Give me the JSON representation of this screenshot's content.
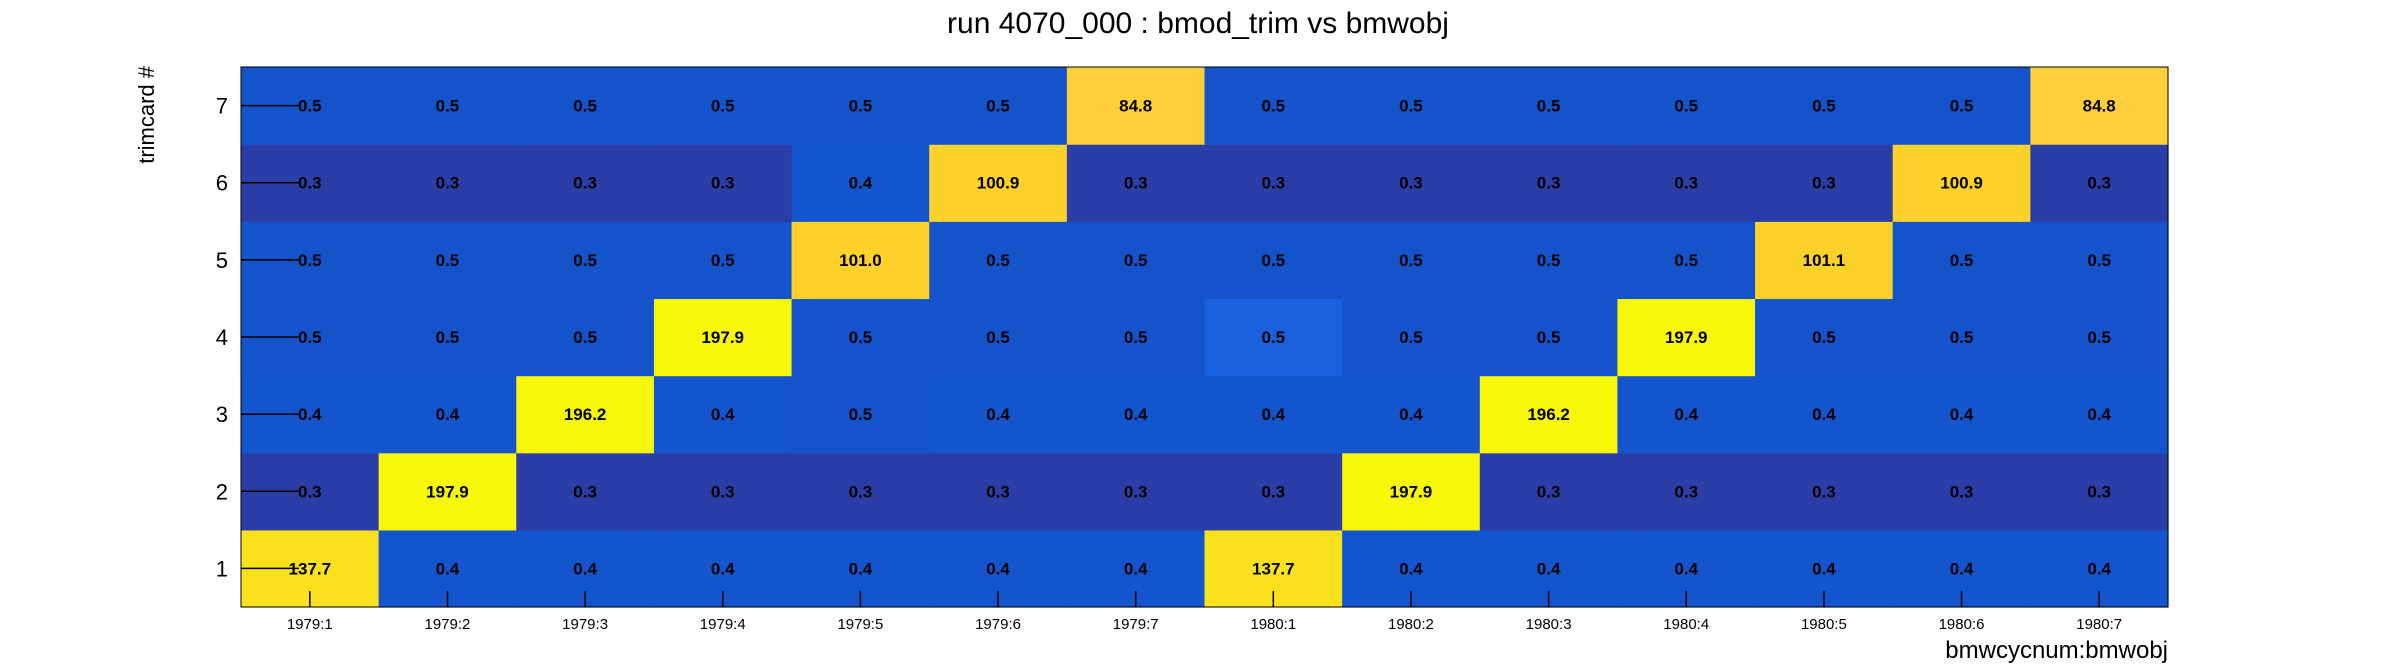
{
  "chart_data": {
    "type": "heatmap",
    "title": "run 4070_000 : bmod_trim vs bmwobj",
    "xlabel": "bmwcycnum:bmwobj",
    "ylabel": "trimcard #",
    "x_categories": [
      "1979:1",
      "1979:2",
      "1979:3",
      "1979:4",
      "1979:5",
      "1979:6",
      "1979:7",
      "1980:1",
      "1980:2",
      "1980:3",
      "1980:4",
      "1980:5",
      "1980:6",
      "1980:7"
    ],
    "y_categories": [
      "1",
      "2",
      "3",
      "4",
      "5",
      "6",
      "7"
    ],
    "values": [
      [
        137.7,
        0.4,
        0.4,
        0.4,
        0.4,
        0.4,
        0.4,
        137.7,
        0.4,
        0.4,
        0.4,
        0.4,
        0.4,
        0.4
      ],
      [
        0.3,
        197.9,
        0.3,
        0.3,
        0.3,
        0.3,
        0.3,
        0.3,
        197.9,
        0.3,
        0.3,
        0.3,
        0.3,
        0.3
      ],
      [
        0.4,
        0.4,
        196.2,
        0.4,
        0.5,
        0.4,
        0.4,
        0.4,
        0.4,
        196.2,
        0.4,
        0.4,
        0.4,
        0.4
      ],
      [
        0.5,
        0.5,
        0.5,
        197.9,
        0.5,
        0.5,
        0.5,
        0.5,
        0.5,
        0.5,
        197.9,
        0.5,
        0.5,
        0.5
      ],
      [
        0.5,
        0.5,
        0.5,
        0.5,
        101.0,
        0.5,
        0.5,
        0.5,
        0.5,
        0.5,
        0.5,
        101.1,
        0.5,
        0.5
      ],
      [
        0.3,
        0.3,
        0.3,
        0.3,
        0.4,
        100.9,
        0.3,
        0.3,
        0.3,
        0.3,
        0.3,
        0.3,
        100.9,
        0.3
      ],
      [
        0.5,
        0.5,
        0.5,
        0.5,
        0.5,
        0.5,
        84.8,
        0.5,
        0.5,
        0.5,
        0.5,
        0.5,
        0.5,
        84.8
      ]
    ],
    "value_format": "one-decimal",
    "colorscale": "blue-to-yellow",
    "legend": "none",
    "grid": false
  }
}
